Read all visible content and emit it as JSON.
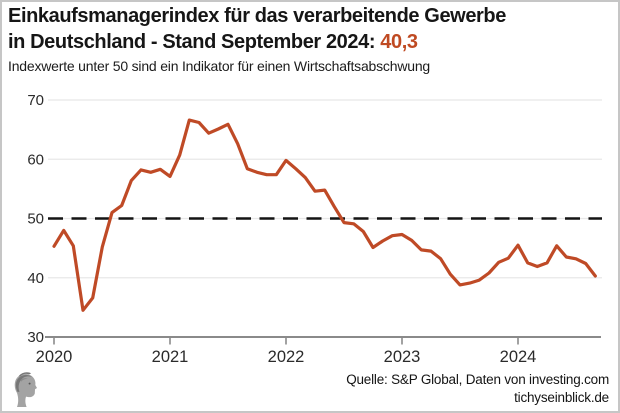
{
  "header": {
    "title_line1": "Einkaufsmanagerindex für das verarbeitende Gewerbe",
    "title_line2_prefix": "in Deutschland - Stand September 2024: ",
    "title_value": "40,3",
    "subtitle": "Indexwerte unter 50 sind ein Indikator für einen Wirtschaftsabschwung",
    "accent_color": "#bf4a22"
  },
  "chart_data": {
    "type": "line",
    "title": "Einkaufsmanagerindex für das verarbeitende Gewerbe in Deutschland - Stand September 2024: 40,3",
    "subtitle": "Indexwerte unter 50 sind ein Indikator für einen Wirtschaftsabschwung",
    "series": [
      {
        "name": "Einkaufsmanagerindex Deutschland (verarbeitendes Gewerbe)",
        "start": "2020-01",
        "frequency": "monthly",
        "values": [
          45.3,
          48.0,
          45.4,
          34.5,
          36.6,
          45.2,
          51.0,
          52.2,
          56.4,
          58.2,
          57.8,
          58.3,
          57.1,
          60.7,
          66.6,
          66.2,
          64.4,
          65.1,
          65.9,
          62.6,
          58.4,
          57.8,
          57.4,
          57.4,
          59.8,
          58.4,
          56.9,
          54.6,
          54.8,
          52.0,
          49.3,
          49.1,
          47.8,
          45.1,
          46.2,
          47.1,
          47.3,
          46.3,
          44.7,
          44.5,
          43.2,
          40.6,
          38.8,
          39.1,
          39.6,
          40.8,
          42.6,
          43.3,
          45.5,
          42.5,
          41.9,
          42.5,
          45.4,
          43.5,
          43.2,
          42.4,
          40.3
        ]
      }
    ],
    "last_value": "40,3",
    "x_tick_labels": [
      "2020",
      "2021",
      "2022",
      "2023",
      "2024"
    ],
    "y_tick_labels": [
      "30",
      "40",
      "50",
      "60",
      "70"
    ],
    "ylim": [
      30,
      70
    ],
    "xlabel": "",
    "ylabel": "",
    "grid": "horizontal",
    "legend": "none",
    "threshold_line": {
      "value": 50,
      "style": "dashed",
      "color": "#141414"
    },
    "line_color": "#bf4a26",
    "grid_color": "#e8e8e8",
    "axis_color": "#8a8a8a",
    "tick_label_color": "#2b2b2b"
  },
  "footer": {
    "source": "Quelle: S&P Global, Daten von investing.com",
    "site": "tichyseinblick.de"
  }
}
